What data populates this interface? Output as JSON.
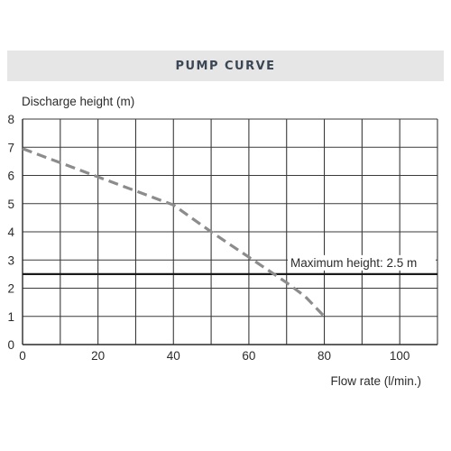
{
  "chart_data": {
    "type": "line",
    "title": "PUMP CURVE",
    "xlabel": "Flow rate (l/min.)",
    "ylabel": "Discharge height (m)",
    "xlim": [
      0,
      110
    ],
    "ylim": [
      0,
      8
    ],
    "x_ticks": [
      0,
      20,
      40,
      60,
      80,
      100
    ],
    "y_ticks": [
      0,
      1,
      2,
      3,
      4,
      5,
      6,
      7,
      8
    ],
    "x_grid_step": 10,
    "y_grid_step": 1,
    "grid": true,
    "series": [
      {
        "style": "dashed",
        "color": "#8c8c8c",
        "x": [
          0,
          10,
          20,
          30,
          40,
          50,
          60,
          70,
          75,
          80
        ],
        "y": [
          6.95,
          6.45,
          5.95,
          5.45,
          4.95,
          4.0,
          3.1,
          2.2,
          1.7,
          1.0
        ]
      }
    ],
    "reference_line": {
      "y": 2.5,
      "label": "Maximum height: 2.5 m",
      "color": "#1a1a1a"
    }
  }
}
